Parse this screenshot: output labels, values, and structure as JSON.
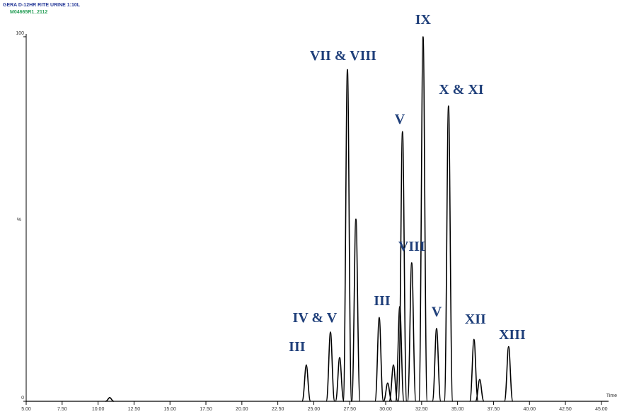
{
  "chart_data": {
    "type": "chromatogram",
    "header": [
      "GERA D-12HR RITE URINE 1:10L",
      "M04665R1_2112"
    ],
    "x_label": "Time",
    "y_label": "%",
    "x": [
      10.81,
      24.48,
      26.16,
      26.8,
      27.34,
      27.93,
      29.55,
      30.14,
      30.54,
      30.98,
      31.17,
      31.81,
      32.6,
      33.54,
      34.37,
      36.14,
      36.54,
      38.55
    ],
    "values": [
      1,
      10,
      19,
      12,
      91,
      50,
      23,
      5,
      10,
      26,
      74,
      38,
      100,
      20,
      81,
      17,
      6,
      15
    ],
    "color": "#000000",
    "xlim": [
      5,
      45.5
    ],
    "ylim": [
      0,
      100
    ],
    "xticks": [
      {
        "value": 5,
        "label": "5.00"
      },
      {
        "value": 7.5,
        "label": "7.50"
      },
      {
        "value": 10,
        "label": "10.00"
      },
      {
        "value": 12.5,
        "label": "12.50"
      },
      {
        "value": 15,
        "label": "15.00"
      },
      {
        "value": 17.5,
        "label": "17.50"
      },
      {
        "value": 20,
        "label": "20.00"
      },
      {
        "value": 22.5,
        "label": "22.50"
      },
      {
        "value": 25,
        "label": "25.00"
      },
      {
        "value": 27.5,
        "label": "27.50"
      },
      {
        "value": 30,
        "label": "30.00"
      },
      {
        "value": 32.5,
        "label": "32.50"
      },
      {
        "value": 35,
        "label": "35.00"
      },
      {
        "value": 37.5,
        "label": "37.50"
      },
      {
        "value": 40,
        "label": "40.00"
      },
      {
        "value": 42.5,
        "label": "42.50"
      },
      {
        "value": 45,
        "label": "45.00"
      }
    ],
    "yticks": [
      0,
      100
    ],
    "annotations": [
      {
        "text": "III",
        "x": 23.84,
        "y": 13.8
      },
      {
        "text": "IV & V",
        "x": 25.07,
        "y": 21.7
      },
      {
        "text": "VII & VIII",
        "x": 27.04,
        "y": 93.6
      },
      {
        "text": "III",
        "x": 29.75,
        "y": 26.4
      },
      {
        "text": "V",
        "x": 30.98,
        "y": 76.2
      },
      {
        "text": "VIII",
        "x": 31.81,
        "y": 41.3
      },
      {
        "text": "IX",
        "x": 32.6,
        "y": 103.5
      },
      {
        "text": "V",
        "x": 33.54,
        "y": 23.4
      },
      {
        "text": "X & XI",
        "x": 35.26,
        "y": 84.3
      },
      {
        "text": "XII",
        "x": 36.24,
        "y": 21.3
      },
      {
        "text": "XIII",
        "x": 38.8,
        "y": 17.1
      }
    ]
  }
}
